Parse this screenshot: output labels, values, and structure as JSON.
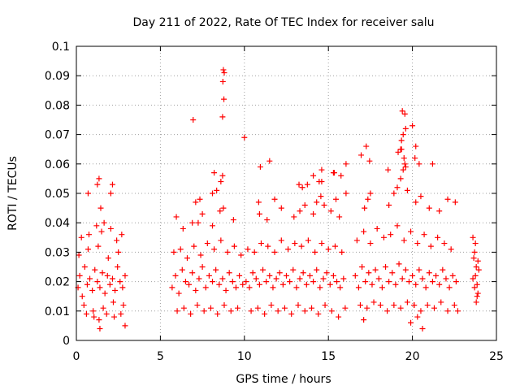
{
  "chart_data": {
    "type": "scatter",
    "title": "Day 211 of 2022, Rate Of TEC Index for receiver salu",
    "xlabel": "GPS time / hours",
    "ylabel": "ROTI / TECUs",
    "xlim": [
      0,
      25
    ],
    "ylim": [
      0,
      0.1
    ],
    "xticks": [
      0,
      5,
      10,
      15,
      20,
      25
    ],
    "xtick_labels": [
      "0",
      "5",
      "10",
      "15",
      "20",
      "25"
    ],
    "yticks": [
      0,
      0.01,
      0.02,
      0.03,
      0.04,
      0.05,
      0.06,
      0.07,
      0.08,
      0.09,
      0.1
    ],
    "ytick_labels": [
      "0",
      "0.01",
      "0.02",
      "0.03",
      "0.04",
      "0.05",
      "0.06",
      "0.07",
      "0.08",
      "0.09",
      "0.1"
    ],
    "grid": true,
    "marker": "+",
    "color": "#ff0000",
    "series": [
      {
        "name": "ROTI",
        "x": [
          0.1,
          0.2,
          0.35,
          0.5,
          0.65,
          0.8,
          0.95,
          1.1,
          1.25,
          1.4,
          1.55,
          1.7,
          1.85,
          2.0,
          2.15,
          2.3,
          2.45,
          2.6,
          2.75,
          2.9,
          0.15,
          0.45,
          0.7,
          1.0,
          1.3,
          1.6,
          1.9,
          2.2,
          2.5,
          2.8,
          0.3,
          0.75,
          1.2,
          1.5,
          1.65,
          2.05,
          2.4,
          2.7,
          0.6,
          1.05,
          1.35,
          1.8,
          2.25,
          2.65,
          1.25,
          1.35,
          2.05,
          2.15,
          1.45,
          0.7,
          2.9,
          1.4,
          5.7,
          5.9,
          6.1,
          6.3,
          6.5,
          6.7,
          6.9,
          7.1,
          7.3,
          7.5,
          7.7,
          7.9,
          8.1,
          8.3,
          8.5,
          8.7,
          8.9,
          9.1,
          9.3,
          9.5,
          9.7,
          9.9,
          5.8,
          6.2,
          6.6,
          7.0,
          7.4,
          7.8,
          8.2,
          8.6,
          9.0,
          9.4,
          9.8,
          6.0,
          6.4,
          6.8,
          7.2,
          7.6,
          8.0,
          8.4,
          8.8,
          9.2,
          9.6,
          5.95,
          6.9,
          7.5,
          8.1,
          8.75,
          9.35,
          6.35,
          7.25,
          8.55,
          7.1,
          8.1,
          8.35,
          8.6,
          8.7,
          7.35,
          8.75,
          8.8,
          8.72,
          8.78,
          8.7,
          6.95,
          10.0,
          8.2,
          10.1,
          10.3,
          10.5,
          10.7,
          10.9,
          11.1,
          11.3,
          11.5,
          11.7,
          11.9,
          12.1,
          12.3,
          12.5,
          12.7,
          12.9,
          13.1,
          13.3,
          13.5,
          13.7,
          13.9,
          14.1,
          14.3,
          14.5,
          14.7,
          14.9,
          15.1,
          15.3,
          15.5,
          15.7,
          15.9,
          10.2,
          10.6,
          11.0,
          11.4,
          11.8,
          12.2,
          12.6,
          13.0,
          13.4,
          13.8,
          14.2,
          14.6,
          15.0,
          15.4,
          15.8,
          10.4,
          10.8,
          11.2,
          11.6,
          12.0,
          12.4,
          12.8,
          13.2,
          13.6,
          14.0,
          14.4,
          14.8,
          15.2,
          15.6,
          16.0,
          10.9,
          11.35,
          12.2,
          12.95,
          13.3,
          13.6,
          14.1,
          14.3,
          14.55,
          14.75,
          15.15,
          15.45,
          15.65,
          10.95,
          11.5,
          13.75,
          14.1,
          15.3,
          15.75,
          16.05,
          13.45,
          14.6,
          11.8,
          14.6,
          16.05,
          15.35,
          14.45,
          13.25,
          10.85,
          16.6,
          16.8,
          17.0,
          17.2,
          17.4,
          17.6,
          17.8,
          18.0,
          18.2,
          18.4,
          18.6,
          18.8,
          19.0,
          19.2,
          19.4,
          19.6,
          19.8,
          20.0,
          20.2,
          20.4,
          20.6,
          20.8,
          21.0,
          21.2,
          21.4,
          21.6,
          21.8,
          22.0,
          22.2,
          22.4,
          22.6,
          16.7,
          17.1,
          17.5,
          17.9,
          18.3,
          18.7,
          19.1,
          19.5,
          19.9,
          20.3,
          20.7,
          21.1,
          21.5,
          21.9,
          22.3,
          16.9,
          17.3,
          17.7,
          18.1,
          18.5,
          18.9,
          19.3,
          19.7,
          20.1,
          20.5,
          20.9,
          21.3,
          21.7,
          22.1,
          22.5,
          17.15,
          17.35,
          17.5,
          18.6,
          18.9,
          19.1,
          19.3,
          19.45,
          19.55,
          19.7,
          20.2,
          20.5,
          21.0,
          21.6,
          22.1,
          16.95,
          17.25,
          17.45,
          19.5,
          19.6,
          19.35,
          19.15,
          20.15,
          20.4,
          18.55,
          19.4,
          19.55,
          19.6,
          19.45,
          19.35,
          20.2,
          19.3,
          20.0,
          21.2,
          22.55,
          20.1,
          20.3,
          20.6,
          19.9,
          17.1,
          22.7,
          23.6,
          23.7,
          23.8,
          23.9,
          23.65,
          23.75,
          23.85,
          23.95,
          23.7,
          23.8,
          23.6,
          23.9,
          23.75,
          23.85
        ],
        "y": [
          0.018,
          0.022,
          0.015,
          0.025,
          0.019,
          0.021,
          0.017,
          0.024,
          0.02,
          0.018,
          0.023,
          0.016,
          0.022,
          0.019,
          0.021,
          0.017,
          0.025,
          0.02,
          0.018,
          0.022,
          0.029,
          0.012,
          0.031,
          0.01,
          0.032,
          0.011,
          0.028,
          0.013,
          0.03,
          0.012,
          0.035,
          0.036,
          0.039,
          0.037,
          0.04,
          0.038,
          0.034,
          0.036,
          0.009,
          0.008,
          0.007,
          0.009,
          0.008,
          0.009,
          0.053,
          0.055,
          0.05,
          0.053,
          0.045,
          0.05,
          0.005,
          0.004,
          0.018,
          0.022,
          0.016,
          0.024,
          0.02,
          0.019,
          0.023,
          0.017,
          0.021,
          0.025,
          0.018,
          0.022,
          0.02,
          0.024,
          0.019,
          0.021,
          0.017,
          0.023,
          0.02,
          0.018,
          0.022,
          0.019,
          0.03,
          0.031,
          0.028,
          0.032,
          0.029,
          0.033,
          0.031,
          0.034,
          0.03,
          0.032,
          0.029,
          0.01,
          0.011,
          0.009,
          0.012,
          0.01,
          0.011,
          0.009,
          0.012,
          0.01,
          0.011,
          0.042,
          0.04,
          0.043,
          0.039,
          0.045,
          0.041,
          0.038,
          0.04,
          0.044,
          0.047,
          0.05,
          0.051,
          0.054,
          0.056,
          0.048,
          0.092,
          0.091,
          0.088,
          0.082,
          0.076,
          0.075,
          0.069,
          0.057,
          0.02,
          0.018,
          0.023,
          0.021,
          0.019,
          0.024,
          0.02,
          0.022,
          0.018,
          0.021,
          0.023,
          0.019,
          0.022,
          0.02,
          0.024,
          0.018,
          0.021,
          0.023,
          0.019,
          0.022,
          0.02,
          0.024,
          0.018,
          0.021,
          0.023,
          0.019,
          0.022,
          0.02,
          0.018,
          0.021,
          0.031,
          0.03,
          0.033,
          0.032,
          0.03,
          0.034,
          0.031,
          0.033,
          0.032,
          0.034,
          0.03,
          0.033,
          0.031,
          0.032,
          0.03,
          0.01,
          0.011,
          0.009,
          0.012,
          0.01,
          0.011,
          0.009,
          0.012,
          0.01,
          0.011,
          0.009,
          0.012,
          0.01,
          0.008,
          0.011,
          0.043,
          0.041,
          0.045,
          0.042,
          0.044,
          0.046,
          0.043,
          0.047,
          0.049,
          0.046,
          0.044,
          0.048,
          0.042,
          0.059,
          0.061,
          0.053,
          0.056,
          0.057,
          0.056,
          0.05,
          0.052,
          0.054,
          0.048,
          0.058,
          0.06,
          0.057,
          0.054,
          0.053,
          0.047,
          0.022,
          0.018,
          0.025,
          0.02,
          0.023,
          0.019,
          0.024,
          0.021,
          0.018,
          0.025,
          0.02,
          0.023,
          0.019,
          0.026,
          0.021,
          0.024,
          0.02,
          0.022,
          0.019,
          0.024,
          0.021,
          0.018,
          0.023,
          0.02,
          0.022,
          0.019,
          0.024,
          0.021,
          0.018,
          0.022,
          0.02,
          0.034,
          0.037,
          0.033,
          0.038,
          0.035,
          0.036,
          0.039,
          0.034,
          0.037,
          0.033,
          0.036,
          0.032,
          0.035,
          0.033,
          0.031,
          0.012,
          0.011,
          0.013,
          0.012,
          0.01,
          0.012,
          0.011,
          0.013,
          0.012,
          0.01,
          0.012,
          0.011,
          0.013,
          0.01,
          0.012,
          0.045,
          0.048,
          0.05,
          0.046,
          0.05,
          0.052,
          0.055,
          0.058,
          0.06,
          0.051,
          0.047,
          0.049,
          0.045,
          0.044,
          0.048,
          0.063,
          0.066,
          0.061,
          0.062,
          0.059,
          0.065,
          0.064,
          0.062,
          0.06,
          0.058,
          0.078,
          0.077,
          0.072,
          0.07,
          0.068,
          0.066,
          0.065,
          0.073,
          0.06,
          0.047,
          0.012,
          0.008,
          0.004,
          0.006,
          0.007,
          0.01,
          0.021,
          0.018,
          0.025,
          0.016,
          0.028,
          0.022,
          0.019,
          0.024,
          0.03,
          0.013,
          0.035,
          0.027,
          0.033,
          0.015
        ]
      }
    ]
  }
}
